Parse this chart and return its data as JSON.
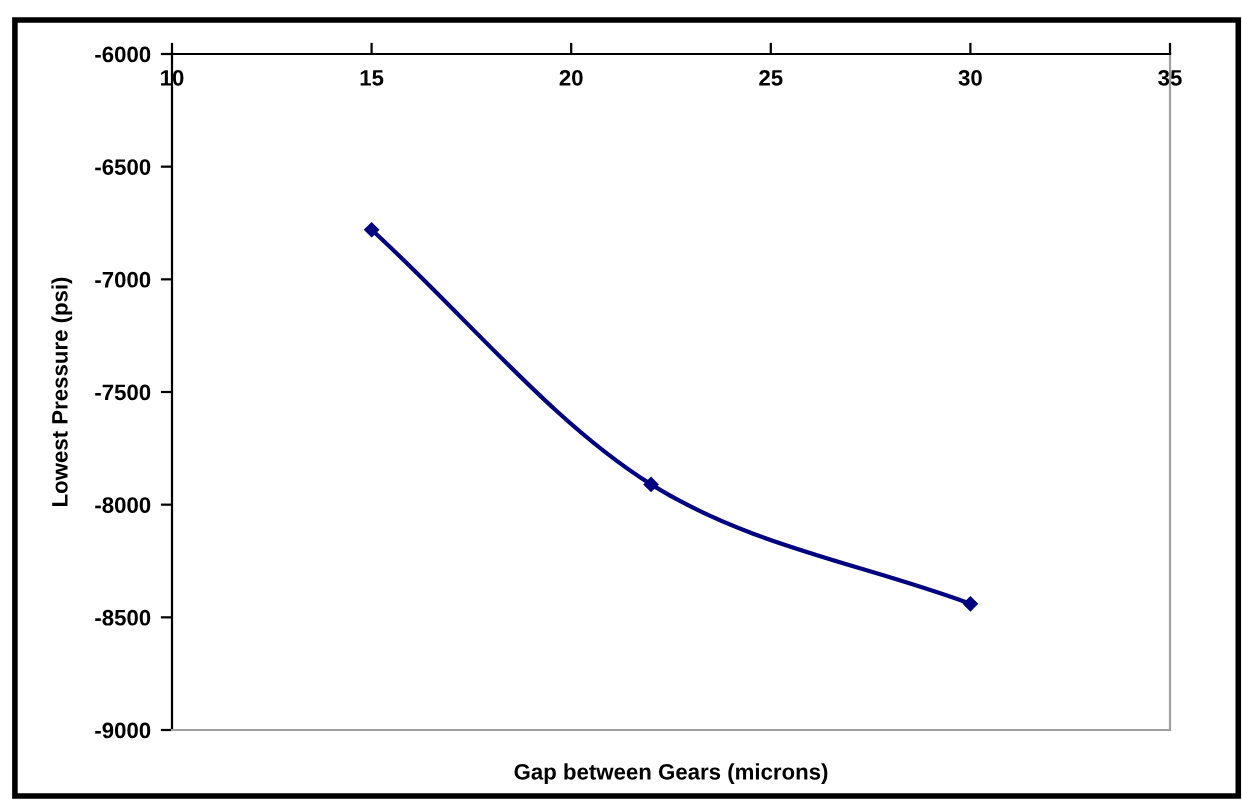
{
  "chart_data": {
    "type": "line",
    "xlabel": "Gap between Gears (microns)",
    "ylabel": "Lowest Pressure (psi)",
    "x": [
      15,
      22,
      30
    ],
    "series": [
      {
        "color": "#000080",
        "values": [
          -6780,
          -7910,
          -8440
        ]
      }
    ],
    "marker": "diamond",
    "xlim": [
      10,
      35
    ],
    "xticks": [
      10,
      15,
      20,
      25,
      30,
      35
    ],
    "ylim": [
      -9000,
      -6000
    ],
    "yticks": [
      -9000,
      -8500,
      -8000,
      -7500,
      -7000,
      -6500,
      -6000
    ],
    "grid": false
  }
}
